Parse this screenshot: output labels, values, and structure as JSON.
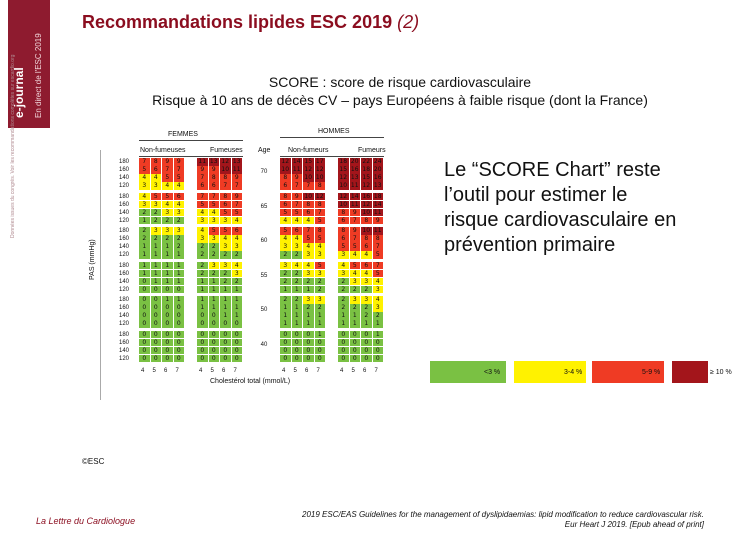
{
  "sidebar": {
    "brand": "e-journal",
    "sub": "En direct de l'ESC 2019",
    "fine": "Données issues du congrès. Voir les recommandations complètes sur escardio.org"
  },
  "slide": {
    "title": "Recommandations lipides ESC 2019 ",
    "title_num": "(2)"
  },
  "chart_title": {
    "line1": "SCORE : score de risque cardiovasculaire",
    "line2": "Risque à 10 ans de décès CV – pays Européens à faible risque (dont la France)"
  },
  "chart_data": {
    "type": "table",
    "sex_labels": {
      "female": "FEMMES",
      "male": "HOMMES"
    },
    "smoke_labels": {
      "non": "Non-fumeuses",
      "smk": "Fumeuses",
      "non_m": "Non-fumeurs",
      "smk_m": "Fumeurs"
    },
    "age_header": "Age",
    "y_axis": "PAS (mmHg)",
    "x_axis": "Cholestérol total (mmol/L)",
    "cholesterol": [
      "4",
      "5",
      "6",
      "7"
    ],
    "sbp": [
      "180",
      "160",
      "140",
      "120"
    ],
    "ages": [
      "70",
      "65",
      "60",
      "55",
      "50",
      "40"
    ],
    "women_non": [
      [
        "7",
        "8",
        "9",
        "9",
        "5",
        "6",
        "7",
        "7",
        "4",
        "4",
        "5",
        "5",
        "3",
        "3",
        "4",
        "4"
      ],
      [
        "4",
        "5",
        "5",
        "6",
        "3",
        "3",
        "4",
        "4",
        "2",
        "2",
        "3",
        "3",
        "1",
        "2",
        "2",
        "2"
      ],
      [
        "2",
        "3",
        "3",
        "3",
        "2",
        "2",
        "2",
        "2",
        "1",
        "1",
        "1",
        "2",
        "1",
        "1",
        "1",
        "1"
      ],
      [
        "1",
        "1",
        "1",
        "1",
        "1",
        "1",
        "1",
        "1",
        "0",
        "1",
        "1",
        "1",
        "0",
        "0",
        "0",
        "0"
      ],
      [
        "0",
        "0",
        "1",
        "1",
        "0",
        "0",
        "0",
        "0",
        "0",
        "0",
        "0",
        "0",
        "0",
        "0",
        "0",
        "0"
      ],
      [
        "0",
        "0",
        "0",
        "0",
        "0",
        "0",
        "0",
        "0",
        "0",
        "0",
        "0",
        "0",
        "0",
        "0",
        "0",
        "0"
      ]
    ],
    "women_smk": [
      [
        "11",
        "13",
        "12",
        "13",
        "9",
        "9",
        "10",
        "11",
        "7",
        "8",
        "8",
        "9",
        "6",
        "6",
        "7",
        "7"
      ],
      [
        "7",
        "7",
        "8",
        "9",
        "5",
        "5",
        "6",
        "7",
        "4",
        "4",
        "5",
        "5",
        "3",
        "3",
        "3",
        "4"
      ],
      [
        "4",
        "5",
        "5",
        "6",
        "3",
        "3",
        "4",
        "4",
        "2",
        "2",
        "3",
        "3",
        "2",
        "2",
        "2",
        "2"
      ],
      [
        "2",
        "3",
        "3",
        "4",
        "2",
        "2",
        "2",
        "3",
        "1",
        "1",
        "2",
        "2",
        "1",
        "1",
        "1",
        "1"
      ],
      [
        "1",
        "1",
        "1",
        "1",
        "1",
        "1",
        "1",
        "1",
        "0",
        "0",
        "1",
        "1",
        "0",
        "0",
        "0",
        "0"
      ],
      [
        "0",
        "0",
        "0",
        "0",
        "0",
        "0",
        "0",
        "0",
        "0",
        "0",
        "0",
        "0",
        "0",
        "0",
        "0",
        "0"
      ]
    ],
    "men_non": [
      [
        "12",
        "14",
        "15",
        "17",
        "10",
        "11",
        "12",
        "12",
        "8",
        "9",
        "10",
        "10",
        "6",
        "7",
        "7",
        "8"
      ],
      [
        "8",
        "9",
        "10",
        "12",
        "6",
        "7",
        "8",
        "8",
        "5",
        "5",
        "6",
        "7",
        "4",
        "4",
        "4",
        "5"
      ],
      [
        "5",
        "6",
        "7",
        "8",
        "4",
        "4",
        "5",
        "5",
        "3",
        "3",
        "4",
        "4",
        "2",
        "2",
        "3",
        "3"
      ],
      [
        "3",
        "4",
        "4",
        "5",
        "2",
        "2",
        "3",
        "3",
        "2",
        "2",
        "2",
        "2",
        "1",
        "1",
        "1",
        "2"
      ],
      [
        "2",
        "2",
        "3",
        "3",
        "1",
        "1",
        "2",
        "2",
        "1",
        "1",
        "1",
        "1",
        "1",
        "1",
        "1",
        "1"
      ],
      [
        "0",
        "0",
        "0",
        "1",
        "0",
        "0",
        "0",
        "0",
        "0",
        "0",
        "0",
        "0",
        "0",
        "0",
        "0",
        "0"
      ]
    ],
    "men_smk": [
      [
        "18",
        "20",
        "22",
        "24",
        "15",
        "16",
        "18",
        "20",
        "12",
        "13",
        "15",
        "16",
        "10",
        "11",
        "12",
        "13"
      ],
      [
        "12",
        "14",
        "16",
        "18",
        "10",
        "11",
        "12",
        "14",
        "8",
        "9",
        "10",
        "11",
        "6",
        "7",
        "8",
        "9"
      ],
      [
        "8",
        "9",
        "10",
        "11",
        "6",
        "7",
        "8",
        "8",
        "5",
        "5",
        "6",
        "7",
        "3",
        "4",
        "4",
        "5"
      ],
      [
        "4",
        "5",
        "6",
        "7",
        "3",
        "4",
        "4",
        "5",
        "2",
        "3",
        "3",
        "4",
        "2",
        "2",
        "2",
        "3"
      ],
      [
        "2",
        "3",
        "3",
        "4",
        "2",
        "2",
        "2",
        "3",
        "1",
        "1",
        "2",
        "2",
        "1",
        "1",
        "1",
        "1"
      ],
      [
        "0",
        "0",
        "0",
        "1",
        "0",
        "0",
        "0",
        "0",
        "0",
        "0",
        "0",
        "0",
        "0",
        "0",
        "0",
        "0"
      ]
    ],
    "legend": [
      {
        "label": "<3 %",
        "color": "#7ac143"
      },
      {
        "label": "3-4 %",
        "color": "#fff200"
      },
      {
        "label": "5-9 %",
        "color": "#ef3b24"
      },
      {
        "label": "≥ 10 %",
        "color": "#a3151b"
      }
    ]
  },
  "callout": "Le “SCORE Chart” reste l’outil pour estimer le risque cardiovasculaire en prévention primaire",
  "copyright": "©ESC",
  "footer_left": "La Lettre du Cardiologue",
  "footer_right": "2019 ESC/EAS Guidelines for the management of dyslipidaemias: lipid modification to reduce cardiovascular risk. Eur Heart J 2019. [Epub ahead of print]"
}
